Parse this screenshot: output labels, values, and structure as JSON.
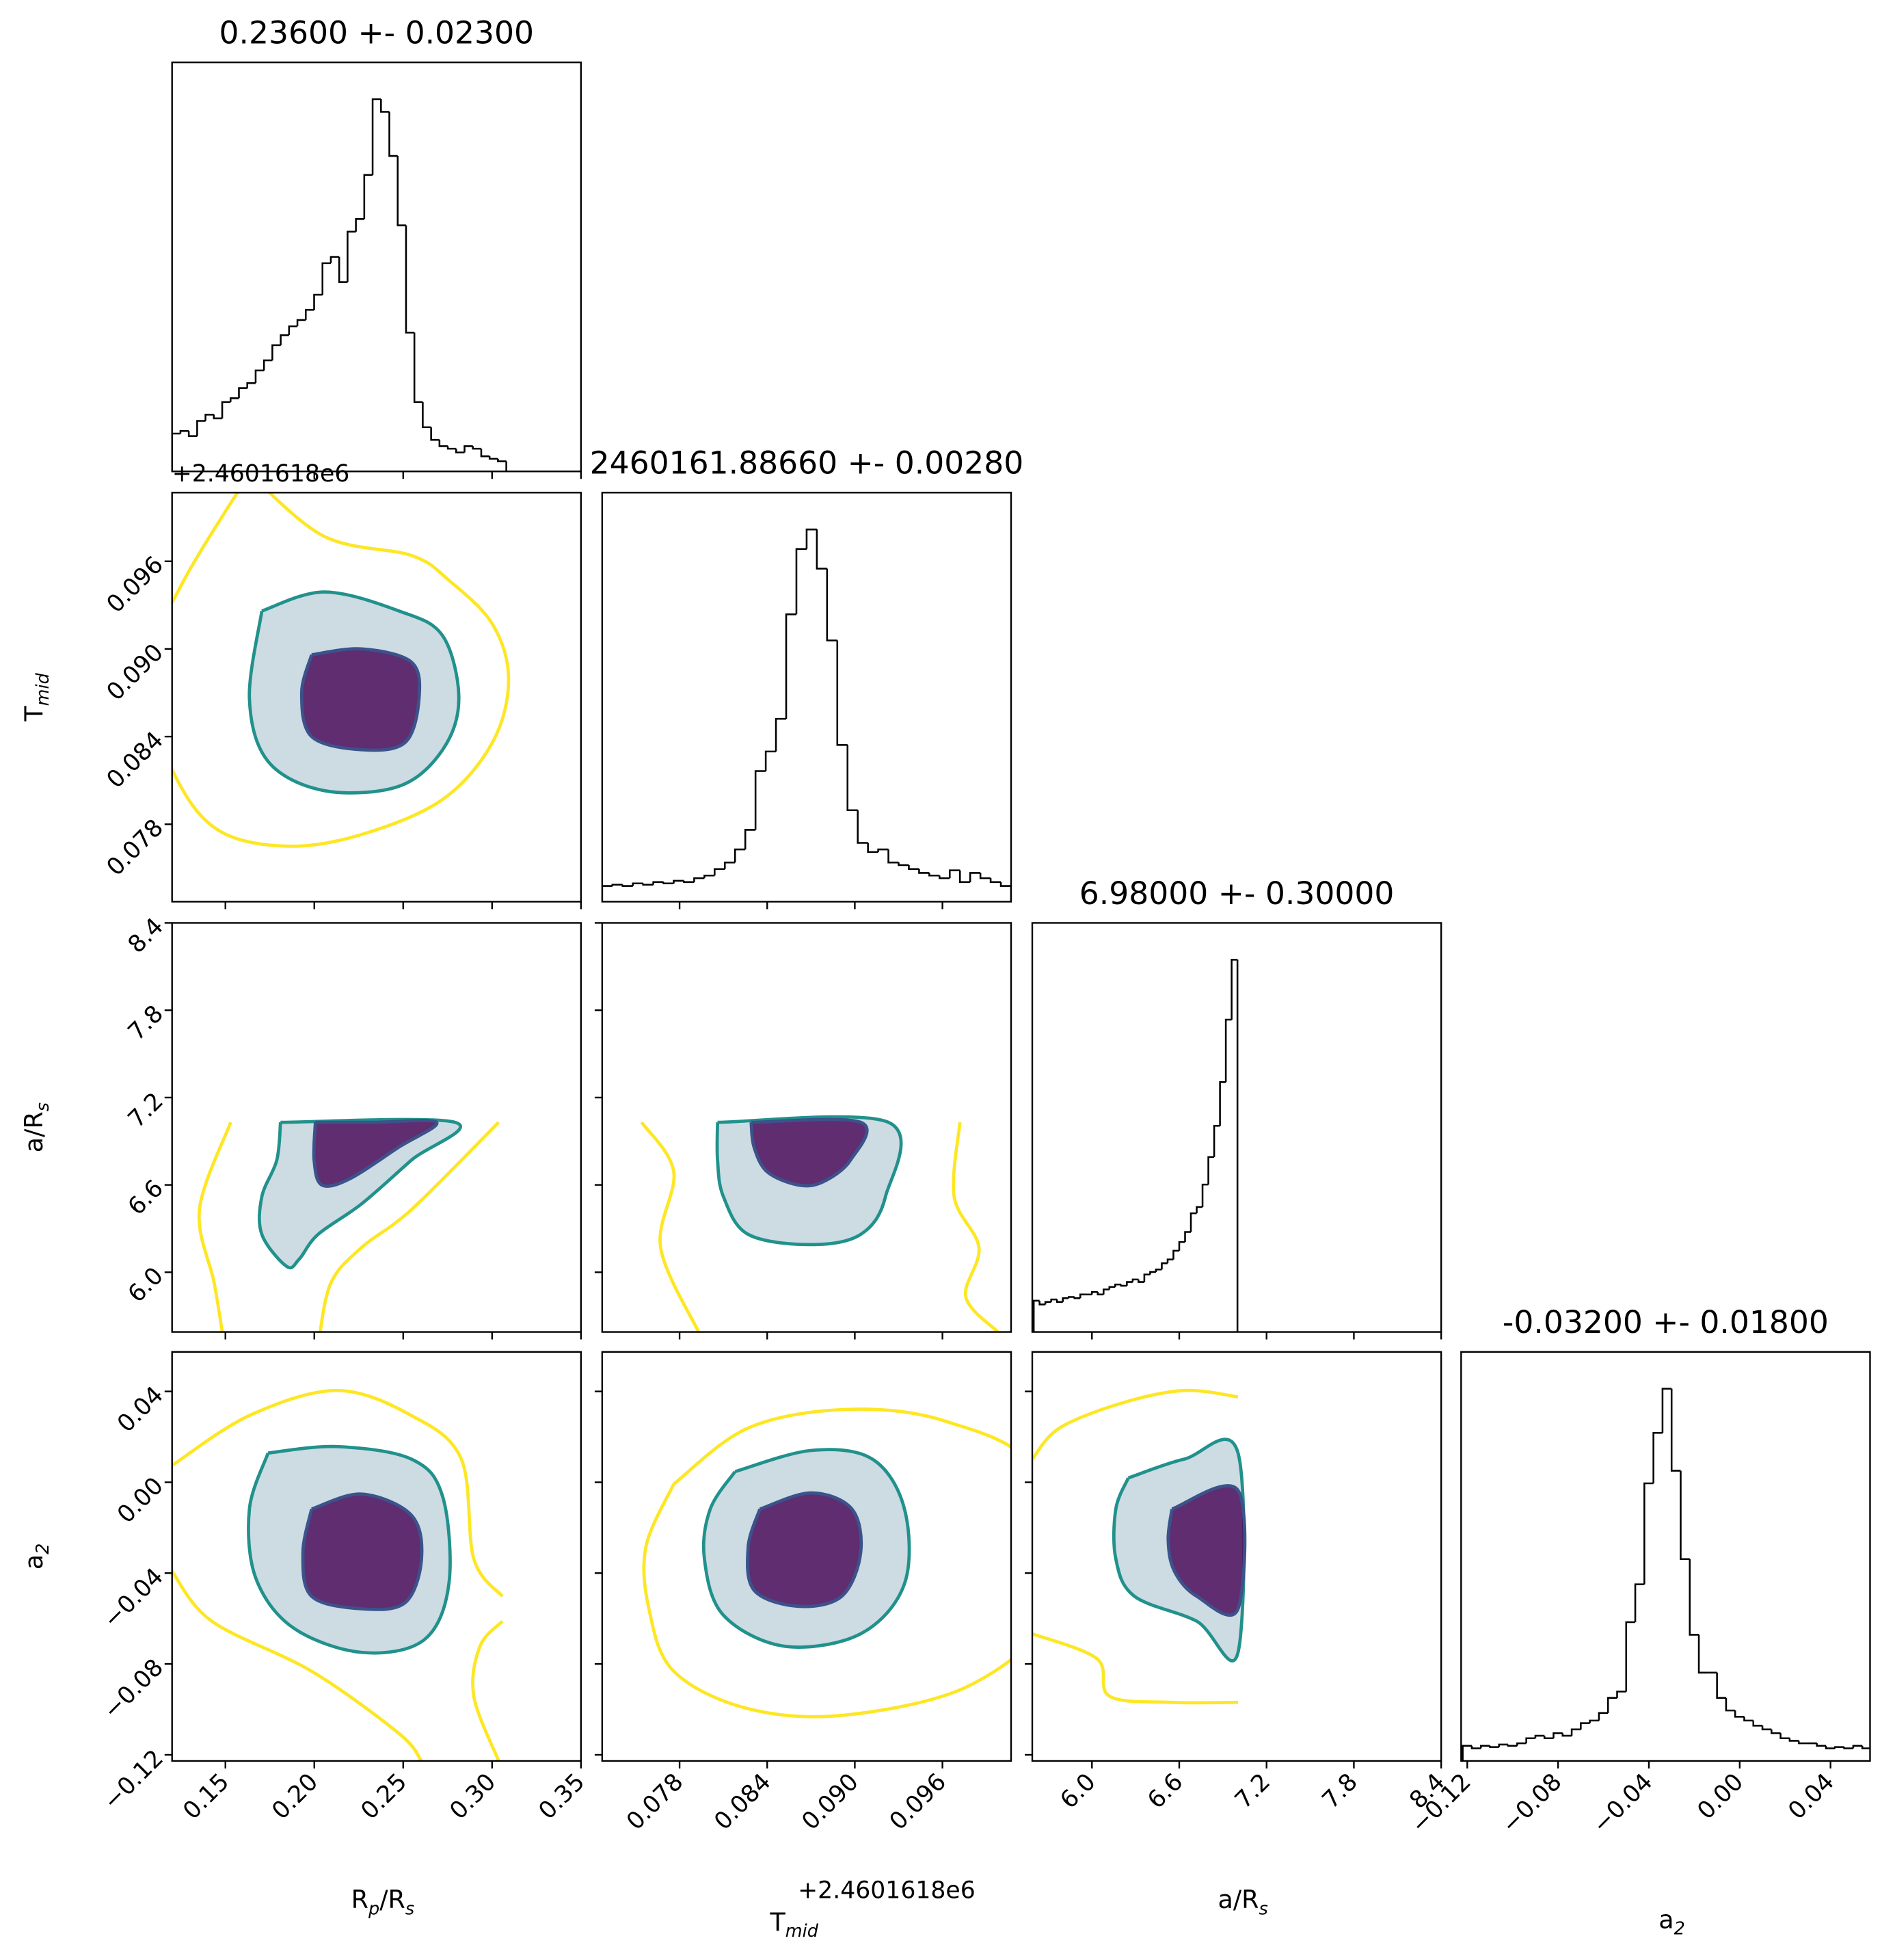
{
  "chart_data": {
    "type": "corner",
    "axes": [
      {
        "label": [
          "R",
          "p",
          "/R",
          "s"
        ],
        "lim": [
          0.12,
          0.35
        ],
        "ticks": [
          0.15,
          {
            "value": 0.2,
            "label": "0.20"
          },
          0.25,
          {
            "value": 0.3,
            "label": "0.30"
          },
          0.35
        ]
      },
      {
        "label": [
          "T",
          "mid"
        ],
        "offset_label": "+2.4601618e6",
        "lim": [
          0.0727,
          0.1007
        ],
        "ticks": [
          0.078,
          0.084,
          {
            "value": 0.09,
            "label": "0.090"
          },
          0.096
        ]
      },
      {
        "label": [
          "a/R",
          "s"
        ],
        "lim": [
          5.59,
          8.4
        ],
        "ticks": [
          {
            "value": 6,
            "label": "6.0"
          },
          6.6,
          7.2,
          7.8,
          8.4
        ]
      },
      {
        "label": [
          "a",
          "2"
        ],
        "lim": [
          -0.1227,
          0.0574
        ],
        "ticks": [
          {
            "value": -0.12,
            "label": "−0.12"
          },
          {
            "value": -0.08,
            "label": "−0.08"
          },
          {
            "value": -0.04,
            "label": "−0.04"
          },
          {
            "value": 0,
            "label": "0.00"
          },
          0.04
        ]
      }
    ],
    "histograms": [
      {
        "axis": 0,
        "title": "0.23600 +- 0.02300",
        "bins": [
          0.12,
          0.1247,
          0.1294,
          0.1341,
          0.1388,
          0.1435,
          0.1482,
          0.1529,
          0.1576,
          0.1623,
          0.167,
          0.1717,
          0.1764,
          0.1811,
          0.1858,
          0.1905,
          0.1952,
          0.1999,
          0.2046,
          0.2093,
          0.214,
          0.2187,
          0.2234,
          0.2281,
          0.2328,
          0.2375,
          0.2422,
          0.2469,
          0.2516,
          0.2563,
          0.261,
          0.2657,
          0.2704,
          0.2751,
          0.2798,
          0.2845,
          0.2892,
          0.2939,
          0.2986,
          0.3033,
          0.308
        ],
        "values": [
          30,
          32,
          28,
          40,
          45,
          42,
          55,
          58,
          66,
          70,
          80,
          88,
          100,
          108,
          115,
          120,
          128,
          140,
          165,
          170,
          150,
          190,
          200,
          235,
          295,
          285,
          250,
          195,
          110,
          55,
          35,
          25,
          20,
          18,
          15,
          20,
          18,
          12,
          10,
          8
        ]
      },
      {
        "axis": 1,
        "title": "2460161.88660 +- 0.00280",
        "bins": [
          0.0727,
          0.0734,
          0.0741,
          0.0748,
          0.0755,
          0.0762,
          0.0769,
          0.0776,
          0.0783,
          0.079,
          0.0797,
          0.0804,
          0.0811,
          0.0818,
          0.0825,
          0.0832,
          0.0839,
          0.0846,
          0.0853,
          0.086,
          0.0867,
          0.0874,
          0.0881,
          0.0888,
          0.0895,
          0.0902,
          0.0909,
          0.0916,
          0.0923,
          0.093,
          0.0937,
          0.0944,
          0.0951,
          0.0958,
          0.0965,
          0.0972,
          0.0979,
          0.0986,
          0.0993,
          0.1,
          0.1007
        ],
        "values": [
          12,
          13,
          12,
          14,
          13,
          15,
          14,
          16,
          15,
          18,
          20,
          25,
          30,
          40,
          55,
          100,
          115,
          140,
          220,
          270,
          285,
          255,
          200,
          120,
          70,
          45,
          38,
          40,
          30,
          28,
          25,
          22,
          20,
          18,
          24,
          15,
          22,
          18,
          15,
          12
        ]
      },
      {
        "axis": 2,
        "title": "6.98000 +- 0.30000",
        "bins": [
          5.6,
          5.64,
          5.68,
          5.72,
          5.76,
          5.8,
          5.84,
          5.88,
          5.92,
          5.96,
          6,
          6.04,
          6.08,
          6.12,
          6.16,
          6.2,
          6.24,
          6.28,
          6.32,
          6.36,
          6.4,
          6.44,
          6.48,
          6.52,
          6.56,
          6.6,
          6.64,
          6.68,
          6.72,
          6.76,
          6.8,
          6.84,
          6.88,
          6.92,
          6.96,
          7
        ],
        "values": [
          25,
          22,
          24,
          26,
          24,
          27,
          28,
          27,
          30,
          30,
          32,
          30,
          34,
          36,
          38,
          37,
          40,
          42,
          40,
          46,
          48,
          50,
          55,
          58,
          65,
          72,
          80,
          95,
          100,
          118,
          140,
          165,
          200,
          250,
          298
        ]
      },
      {
        "axis": 3,
        "title": "-0.03200 +- 0.01800",
        "bins": [
          -0.122,
          -0.118,
          -0.114,
          -0.11,
          -0.106,
          -0.102,
          -0.098,
          -0.094,
          -0.09,
          -0.086,
          -0.082,
          -0.078,
          -0.074,
          -0.07,
          -0.066,
          -0.062,
          -0.058,
          -0.054,
          -0.05,
          -0.046,
          -0.042,
          -0.038,
          -0.034,
          -0.03,
          -0.026,
          -0.022,
          -0.018,
          -0.014,
          -0.01,
          -0.006,
          -0.002,
          0.002,
          0.006,
          0.01,
          0.014,
          0.018,
          0.022,
          0.026,
          0.03,
          0.034,
          0.038,
          0.042,
          0.046,
          0.05,
          0.054,
          0.058
        ],
        "values": [
          12,
          10,
          12,
          11,
          13,
          12,
          14,
          18,
          20,
          18,
          22,
          20,
          25,
          30,
          32,
          38,
          50,
          55,
          110,
          140,
          220,
          260,
          295,
          230,
          160,
          100,
          70,
          70,
          50,
          40,
          35,
          32,
          28,
          25,
          22,
          18,
          16,
          14,
          14,
          12,
          10,
          11,
          10,
          12,
          10
        ]
      }
    ],
    "contours": [
      {
        "axes": [
          0,
          1
        ],
        "series": [
          {
            "color": "#fde725",
            "x": [
              0.1635,
              0.2056,
              0.2546,
              0.2757,
              0.3002,
              0.3093,
              0.3002,
              0.2722,
              0.2266,
              0.1845,
              0.1459,
              0.1214,
              0.1039,
              0.1249,
              0.1635
            ],
            "y": [
              0.102,
              0.0977,
              0.0964,
              0.0947,
              0.0917,
              0.0879,
              0.0836,
              0.0797,
              0.0773,
              0.0765,
              0.0776,
              0.0814,
              0.0879,
              0.0943,
              0.102
            ]
          },
          {
            "color": "#21918c",
            "fill": "#4a7d98",
            "x": [
              0.1705,
              0.2056,
              0.2476,
              0.2722,
              0.2813,
              0.2722,
              0.2476,
              0.2056,
              0.174,
              0.1635,
              0.1705
            ],
            "y": [
              0.0926,
              0.0939,
              0.0926,
              0.0909,
              0.0866,
              0.0831,
              0.0806,
              0.0803,
              0.0823,
              0.0866,
              0.0926
            ]
          },
          {
            "color": "#3b528b",
            "fill": "#440154",
            "x": [
              0.1985,
              0.2266,
              0.2546,
              0.2589,
              0.2511,
              0.2266,
              0.1985,
              0.1929,
              0.1985
            ],
            "y": [
              0.0896,
              0.09,
              0.0891,
              0.0866,
              0.0836,
              0.0831,
              0.084,
              0.087,
              0.0896
            ]
          }
        ]
      },
      {
        "axes": [
          0,
          2
        ],
        "series": [
          {
            "color": "#fde725",
            "x": [
              0.153,
              0.1354,
              0.1438,
              0.1495,
              null,
              0.3037,
              0.2546,
              0.2266,
              0.2091,
              0.2021
            ],
            "y": [
              7.03,
              6.43,
              5.92,
              5.49,
              null,
              7.03,
              6.43,
              6.17,
              5.92,
              5.49
            ]
          },
          {
            "color": "#21918c",
            "fill": "#4a7d98",
            "x": [
              0.181,
              0.2792,
              0.2546,
              0.2266,
              0.2021,
              0.1915,
              0.1845,
              0.1705,
              0.1705,
              0.1789,
              0.181
            ],
            "y": [
              7.03,
              7.03,
              6.77,
              6.47,
              6.26,
              6.09,
              6.04,
              6.26,
              6.52,
              6.77,
              7.03
            ]
          },
          {
            "color": "#3b528b",
            "fill": "#440154",
            "x": [
              0.2006,
              0.2336,
              0.2687,
              0.2476,
              0.2196,
              0.2042,
              0.1999,
              0.2006
            ],
            "y": [
              7.03,
              7.03,
              7.03,
              6.86,
              6.64,
              6.6,
              6.77,
              7.03
            ]
          }
        ]
      },
      {
        "axes": [
          1,
          2
        ],
        "series": [
          {
            "color": "#fde725",
            "x": [
              0.0754,
              0.0776,
              0.0767,
              0.0793,
              null,
              0.0972,
              0.0968,
              0.0985,
              0.0976,
              0.0998
            ],
            "y": [
              7.03,
              6.69,
              6.17,
              5.59,
              null,
              7.03,
              6.52,
              6.17,
              5.83,
              5.59
            ]
          },
          {
            "color": "#21918c",
            "fill": "#4a7d98",
            "x": [
              0.0806,
              0.0923,
              0.0921,
              0.0904,
              0.087,
              0.0827,
              0.081,
              0.0806,
              0.0806
            ],
            "y": [
              7.03,
              7.03,
              6.52,
              6.26,
              6.19,
              6.26,
              6.52,
              6.77,
              7.03
            ]
          },
          {
            "color": "#3b528b",
            "fill": "#440154",
            "x": [
              0.0829,
              0.0904,
              0.0897,
              0.0878,
              0.0861,
              0.084,
              0.0831,
              0.0829
            ],
            "y": [
              7.03,
              7.03,
              6.77,
              6.62,
              6.6,
              6.69,
              6.86,
              7.03
            ]
          }
        ]
      },
      {
        "axes": [
          0,
          3
        ],
        "series": [
          {
            "color": "#fde725",
            "x": [
              0.12,
              0.1635,
              0.2126,
              0.2546,
              0.2827,
              0.2897,
              0.3058,
              null,
              0.12,
              0.1424,
              0.1985,
              0.2476,
              0.2603,
              null,
              0.3058,
              0.2932,
              0.2897,
              0.3037
            ],
            "y": [
              0.0074,
              0.0294,
              0.0404,
              0.0294,
              0.0102,
              -0.0337,
              -0.0502,
              null,
              -0.0392,
              -0.0612,
              -0.0832,
              -0.1106,
              -0.1227,
              null,
              -0.0612,
              -0.0722,
              -0.0942,
              -0.1227
            ]
          },
          {
            "color": "#21918c",
            "fill": "#4a7d98",
            "x": [
              0.174,
              0.2126,
              0.2546,
              0.2722,
              0.2757,
              0.2617,
              0.2266,
              0.188,
              0.167,
              0.1635,
              0.174
            ],
            "y": [
              0.0129,
              0.0157,
              0.0102,
              -0.0063,
              -0.0447,
              -0.0694,
              -0.0749,
              -0.064,
              -0.042,
              -0.0118,
              0.0129
            ]
          },
          {
            "color": "#3b528b",
            "fill": "#440154",
            "x": [
              0.1985,
              0.2266,
              0.2546,
              0.2603,
              0.2511,
              0.2266,
              0.1985,
              0.1936,
              0.1985
            ],
            "y": [
              -0.0118,
              -0.0052,
              -0.0145,
              -0.0337,
              -0.053,
              -0.0557,
              -0.0502,
              -0.031,
              -0.0118
            ]
          }
        ]
      },
      {
        "axes": [
          1,
          3
        ],
        "series": [
          {
            "color": "#fde725",
            "x": [
              0.0776,
              0.0827,
              0.0895,
              0.0963,
              0.1023,
              0.1032,
              0.0981,
              0.0895,
              0.0827,
              0.0776,
              0.0759,
              0.0757,
              0.0776
            ],
            "y": [
              -0.0008,
              0.0239,
              0.0321,
              0.0267,
              0.0047,
              -0.0557,
              -0.0887,
              -0.1024,
              -0.0997,
              -0.0832,
              -0.0557,
              -0.0283,
              -0.0008
            ]
          },
          {
            "color": "#21918c",
            "fill": "#4a7d98",
            "x": [
              0.0818,
              0.087,
              0.0912,
              0.0934,
              0.0934,
              0.0904,
              0.0852,
              0.081,
              0.0797,
              0.0801,
              0.0818
            ],
            "y": [
              0.0047,
              0.014,
              0.0102,
              -0.0118,
              -0.0447,
              -0.0667,
              -0.0722,
              -0.0585,
              -0.0337,
              -0.0118,
              0.0047
            ]
          },
          {
            "color": "#3b528b",
            "fill": "#440154",
            "x": [
              0.0835,
              0.087,
              0.0898,
              0.0904,
              0.0891,
              0.0861,
              0.0831,
              0.0827,
              0.0835
            ],
            "y": [
              -0.0118,
              -0.0047,
              -0.0118,
              -0.031,
              -0.0502,
              -0.0546,
              -0.0475,
              -0.0283,
              -0.0118
            ]
          }
        ]
      },
      {
        "axes": [
          2,
          3
        ],
        "series": [
          {
            "color": "#fde725",
            "x": [
              5.59,
              5.778,
              6.207,
              6.635,
              7.004,
              null,
              5.59,
              6.035,
              6.121,
              6.55,
              7.004
            ],
            "y": [
              0.0102,
              0.0239,
              0.0349,
              0.0404,
              0.0376,
              null,
              -0.0667,
              -0.0777,
              -0.0942,
              -0.0969,
              -0.0969
            ]
          },
          {
            "color": "#21918c",
            "fill": "#4a7d98",
            "x": [
              6.25,
              6.635,
              7.004,
              7.004,
              6.721,
              6.292,
              6.164,
              6.164,
              6.25
            ],
            "y": [
              0.0019,
              0.0102,
              0.0129,
              -0.0749,
              -0.0612,
              -0.0502,
              -0.0337,
              -0.0118,
              0.0019
            ]
          },
          {
            "color": "#3b528b",
            "fill": "#440154",
            "x": [
              6.55,
              7.004,
              7.004,
              6.721,
              6.567,
              6.524,
              6.55
            ],
            "y": [
              -0.0118,
              -0.0036,
              -0.0557,
              -0.0502,
              -0.0392,
              -0.0255,
              -0.0118
            ]
          }
        ]
      }
    ]
  }
}
